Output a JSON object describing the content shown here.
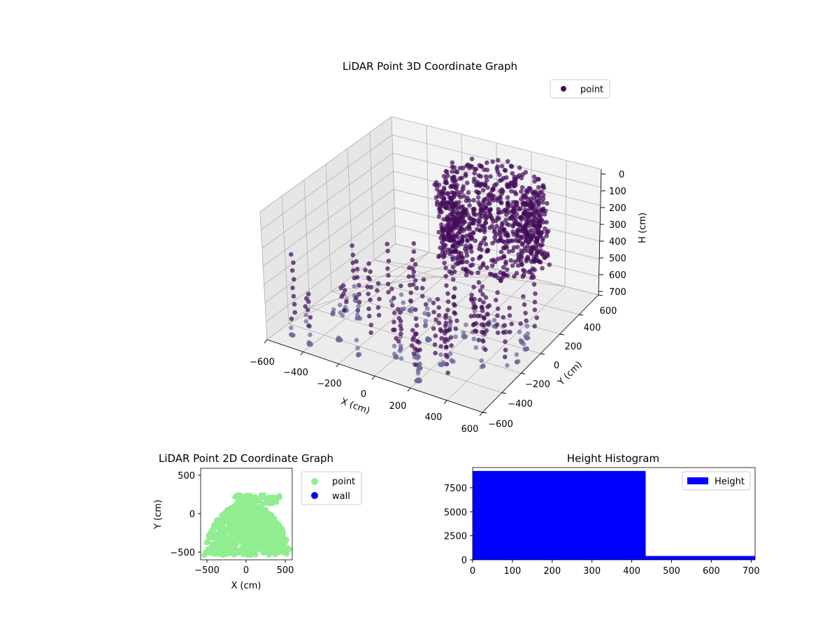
{
  "colors": {
    "point3d": "#440c5a",
    "point3d_light": "#6d6a9c",
    "point2d": "#90ee90",
    "wall": "#0000ee",
    "hist": "#0000ff"
  },
  "chart_data": [
    {
      "type": "scatter",
      "title": "LiDAR Point 3D Coordinate Graph",
      "xlabel": "X (cm)",
      "ylabel": "Y (cm)",
      "zlabel": "H (cm)",
      "xlim": [
        -600,
        600
      ],
      "ylim": [
        -600,
        600
      ],
      "zlim": [
        0,
        700
      ],
      "x_ticks": [
        "−600",
        "−400",
        "−200",
        "0",
        "200",
        "400",
        "600"
      ],
      "y_ticks": [
        "−600",
        "−400",
        "−200",
        "0",
        "200",
        "400",
        "600"
      ],
      "z_ticks": [
        "0",
        "100",
        "200",
        "300",
        "400",
        "500",
        "600",
        "700"
      ],
      "z_inverted": true,
      "grid": true,
      "legend": {
        "placement": "top-right",
        "entries": [
          "point"
        ]
      },
      "series": [
        {
          "name": "point"
        }
      ]
    },
    {
      "type": "scatter",
      "title": "LiDAR Point 2D Coordinate Graph",
      "xlabel": "X (cm)",
      "ylabel": "Y (cm)",
      "xlim": [
        -580,
        580
      ],
      "ylim": [
        -620,
        620
      ],
      "x_ticks": [
        -500,
        0,
        500
      ],
      "y_ticks": [
        -500,
        0,
        500
      ],
      "x_tick_labels": [
        "−500",
        "0",
        "500"
      ],
      "y_tick_labels": [
        "−500",
        "0",
        "500"
      ],
      "legend": {
        "placement": "outside-right",
        "entries": [
          "point",
          "wall"
        ]
      },
      "series": [
        {
          "name": "point",
          "shape": "semi-ellipse",
          "x_range": [
            -520,
            520
          ],
          "y_base": -560,
          "y_top": 140,
          "cap": [
            -160,
            140,
            260
          ]
        },
        {
          "name": "wall",
          "values": []
        }
      ]
    },
    {
      "type": "bar",
      "title": "Height Histogram",
      "xlim": [
        0,
        710
      ],
      "ylim": [
        0,
        9600
      ],
      "x_ticks": [
        0,
        100,
        200,
        300,
        400,
        500,
        600,
        700
      ],
      "y_ticks": [
        0,
        2500,
        5000,
        7500
      ],
      "bins": [
        {
          "start": 0,
          "end": 435,
          "count": 9250
        },
        {
          "start": 435,
          "end": 710,
          "count": 400
        }
      ],
      "legend": {
        "placement": "top-right",
        "entries": [
          "Height"
        ]
      },
      "series": [
        {
          "name": "Height"
        }
      ]
    }
  ]
}
